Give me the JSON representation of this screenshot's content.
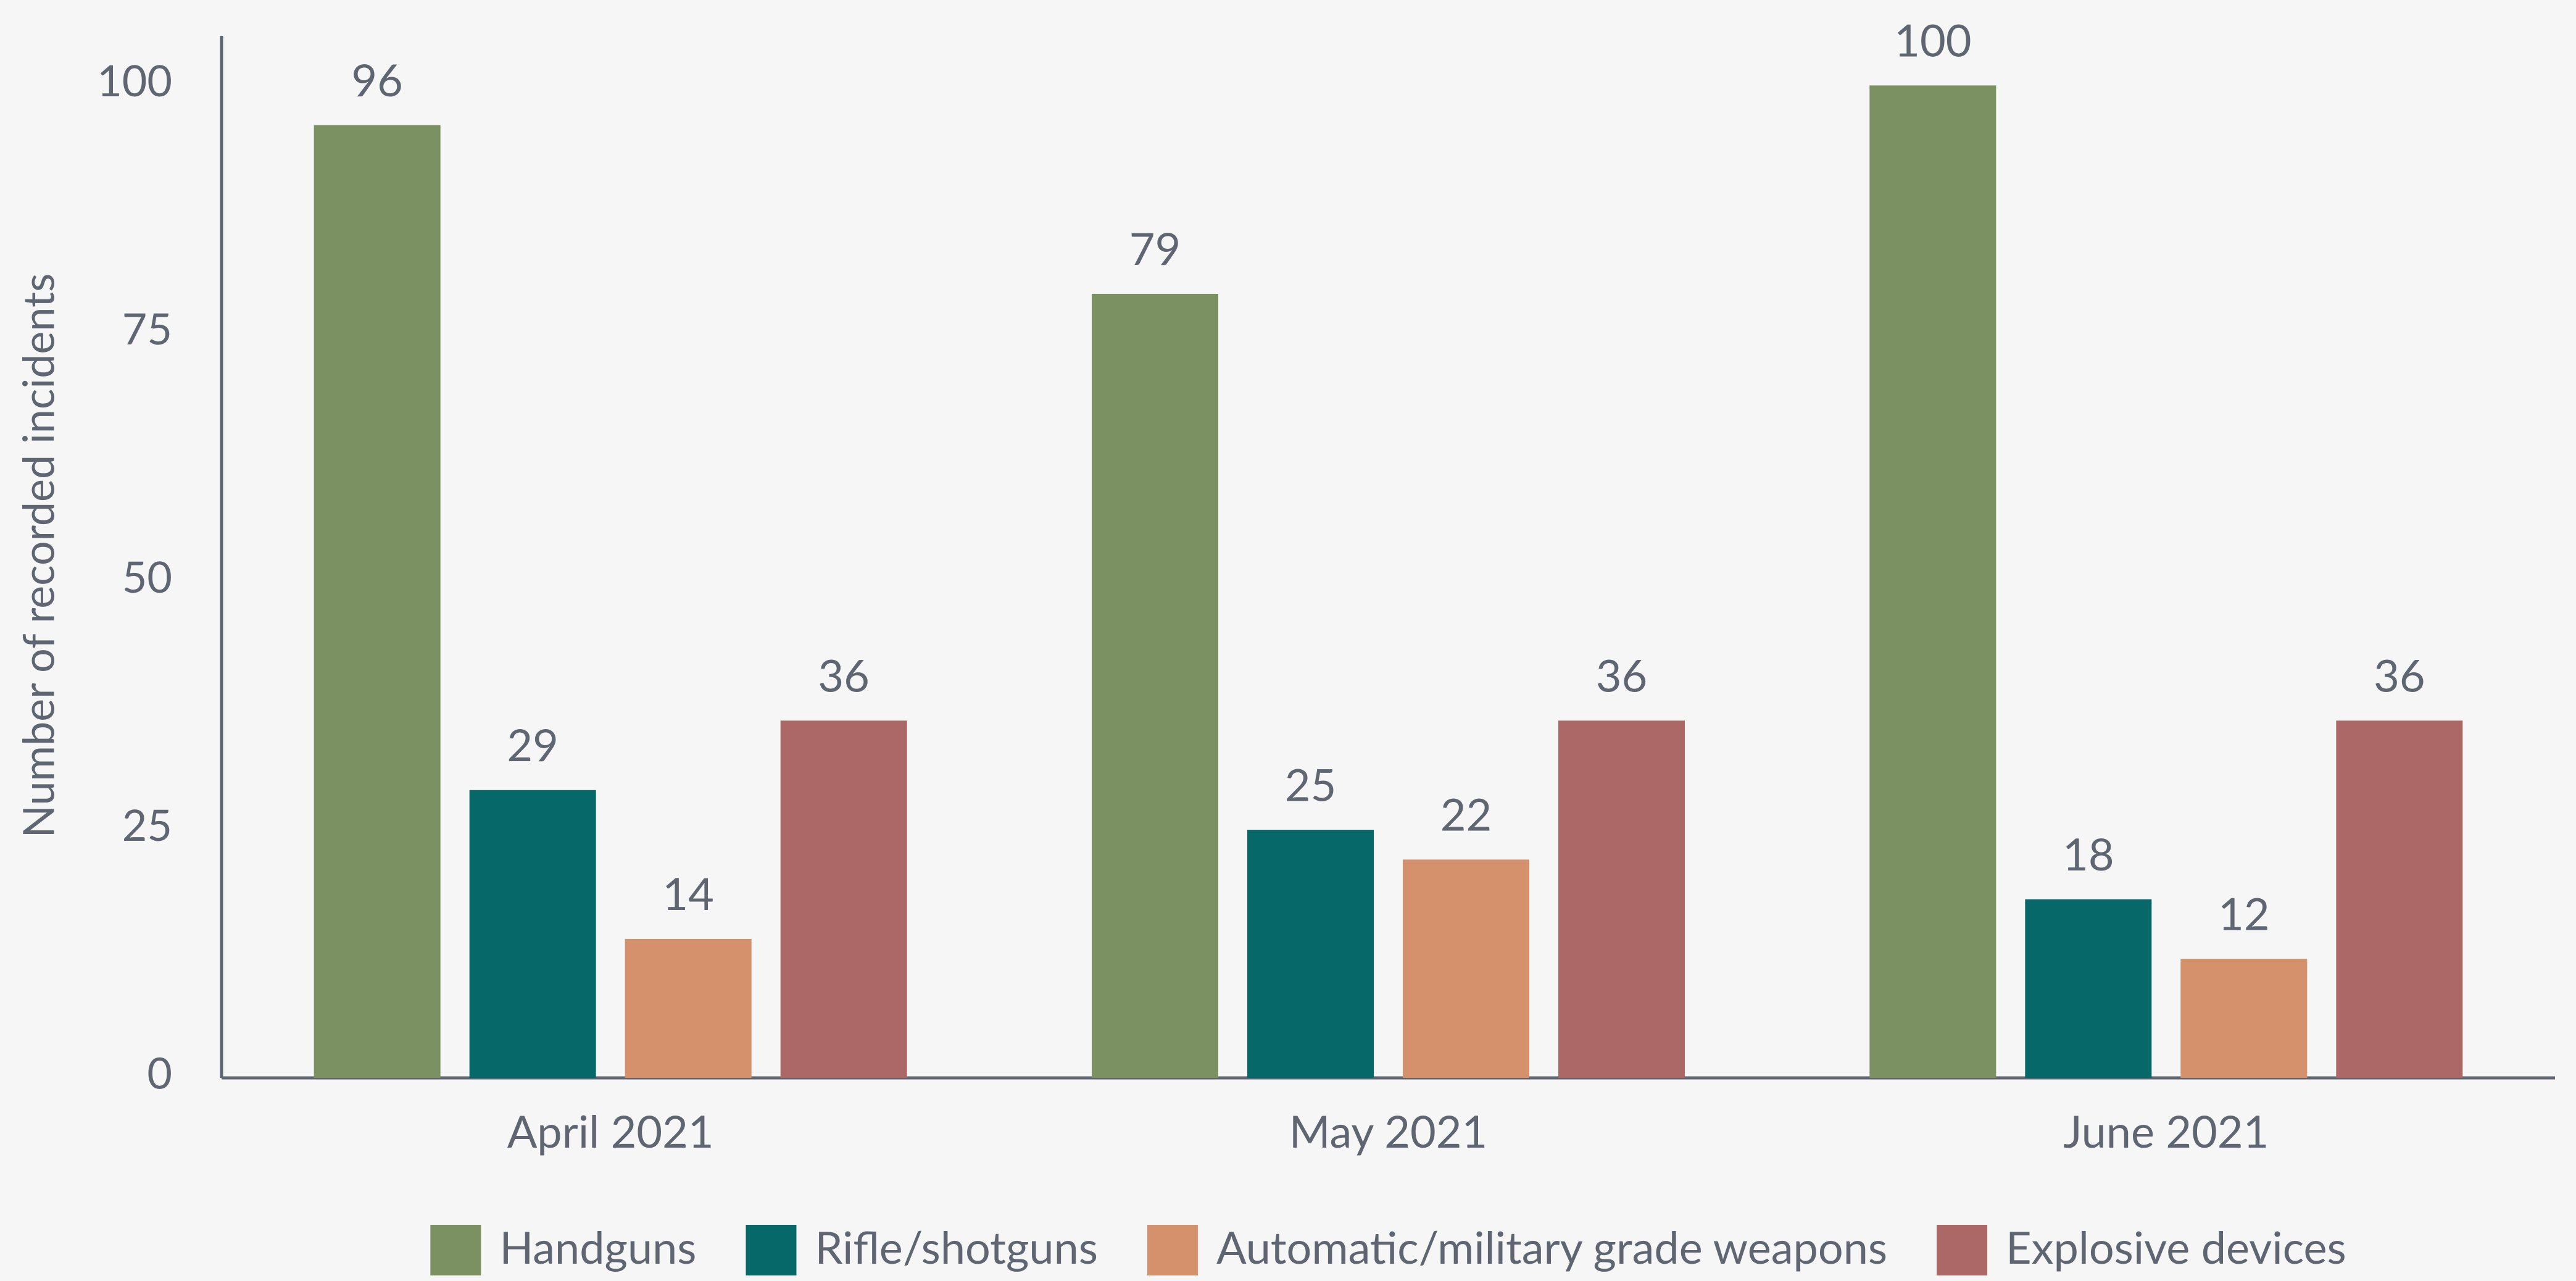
{
  "chart_data": {
    "type": "bar",
    "y_label": "Number of recorded incidents",
    "categories": [
      "April 2021",
      "May 2021",
      "June 2021"
    ],
    "series": [
      {
        "name": "Handguns",
        "color": "#7b9162",
        "values": [
          96,
          79,
          100
        ]
      },
      {
        "name": "Rifle/shotguns",
        "color": "#07686a",
        "values": [
          29,
          25,
          18
        ]
      },
      {
        "name": "Automatic/military grade weapons",
        "color": "#d5916b",
        "values": [
          14,
          22,
          12
        ]
      },
      {
        "name": "Explosive devices",
        "color": "#ab6866",
        "values": [
          36,
          36,
          36
        ]
      }
    ],
    "ylim": [
      0,
      105
    ],
    "yticks": [
      0,
      25,
      50,
      75,
      100
    ],
    "grid": false,
    "legend": "bottom"
  }
}
